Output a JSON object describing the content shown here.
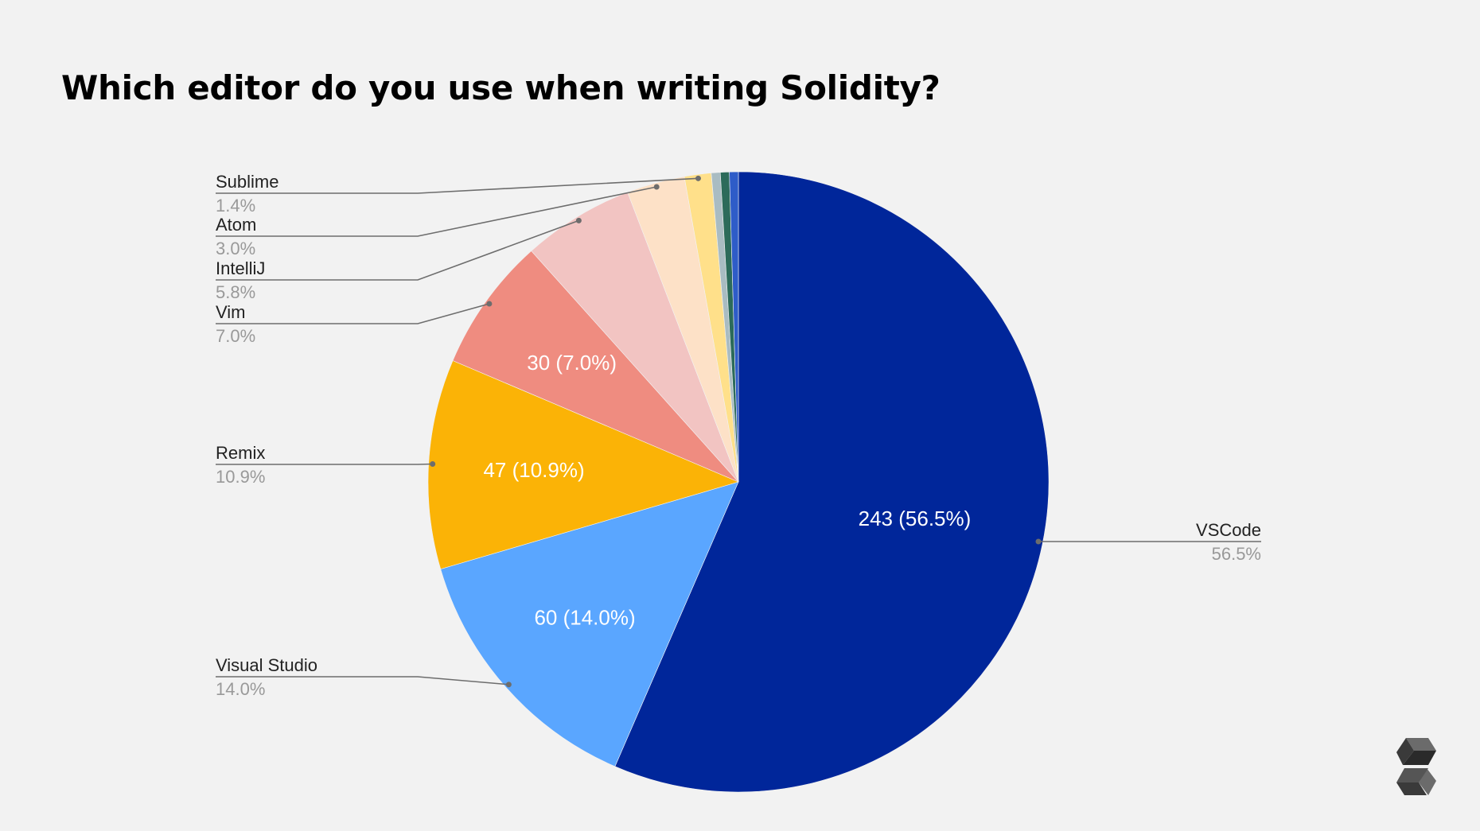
{
  "title": "Which editor do you use when writing Solidity?",
  "logo": {
    "icon": "solidity-logo-icon"
  },
  "chart_data": {
    "type": "pie",
    "start_angle_deg": 0,
    "direction": "clockwise",
    "total": 430,
    "slices": [
      {
        "name": "VSCode",
        "value": 243,
        "percent": "56.5%",
        "data_label": "243 (56.5%)",
        "color": "#00269a"
      },
      {
        "name": "Visual Studio",
        "value": 60,
        "percent": "14.0%",
        "data_label": "60 (14.0%)",
        "color": "#5aa6ff"
      },
      {
        "name": "Remix",
        "value": 47,
        "percent": "10.9%",
        "data_label": "47 (10.9%)",
        "color": "#fbb306"
      },
      {
        "name": "Vim",
        "value": 30,
        "percent": "7.0%",
        "data_label": "30 (7.0%)",
        "color": "#ef8c80"
      },
      {
        "name": "IntelliJ",
        "value": 25,
        "percent": "5.8%",
        "data_label": "",
        "color": "#f2c4c2"
      },
      {
        "name": "Atom",
        "value": 13,
        "percent": "3.0%",
        "data_label": "",
        "color": "#fde1c7"
      },
      {
        "name": "Sublime",
        "value": 6,
        "percent": "1.4%",
        "data_label": "",
        "color": "#ffe08a"
      },
      {
        "name": "",
        "value": 2,
        "percent": "",
        "data_label": "",
        "color": "#a9bcc2"
      },
      {
        "name": "",
        "value": 2,
        "percent": "",
        "data_label": "",
        "color": "#2c6b5a"
      },
      {
        "name": "",
        "value": 2,
        "percent": "",
        "data_label": "",
        "color": "#2e5cc8"
      }
    ]
  }
}
